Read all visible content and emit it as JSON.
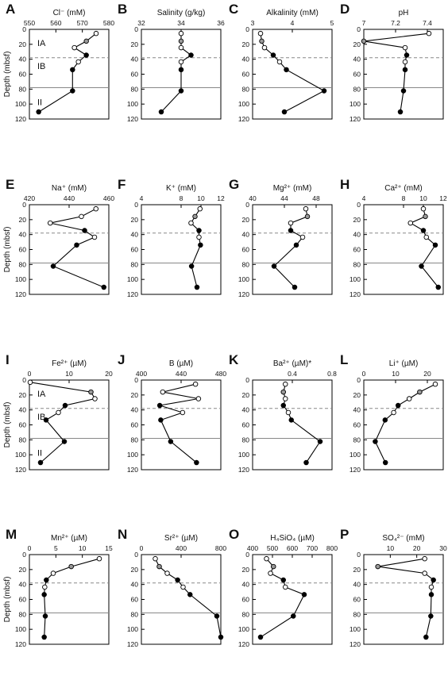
{
  "figure": {
    "y_axis_label": "Depth (mbsf)",
    "unit_labels": [
      "IA",
      "IB",
      "II"
    ]
  },
  "chart_data": [
    {
      "letter": "A",
      "type": "line",
      "title": "Cl⁻ (mM)",
      "xlim": [
        550,
        580
      ],
      "xticks": [
        550,
        560,
        570,
        580
      ],
      "ylim": [
        120,
        0
      ],
      "yticks": [
        0,
        20,
        40,
        60,
        80,
        100,
        120
      ],
      "ylabel_shown": true,
      "units_shown": true,
      "dashed_line_depth": 38,
      "solid_line_depth": 78,
      "points": [
        {
          "x": 575.2,
          "y": 5.5,
          "f": "open"
        },
        {
          "x": 571.5,
          "y": 15.8,
          "f": "gray"
        },
        {
          "x": 567.0,
          "y": 24.5,
          "f": "open"
        },
        {
          "x": 571.5,
          "y": 34.5,
          "f": "filled"
        },
        {
          "x": 568.5,
          "y": 43.5,
          "f": "open"
        },
        {
          "x": 566.3,
          "y": 54.0,
          "f": "filled"
        },
        {
          "x": 566.3,
          "y": 82.3,
          "f": "filled"
        },
        {
          "x": 553.5,
          "y": 110.5,
          "f": "filled"
        }
      ]
    },
    {
      "letter": "B",
      "type": "line",
      "title": "Salinity (g/kg)",
      "xlim": [
        32,
        36
      ],
      "xticks": [
        32,
        34,
        36
      ],
      "ylim": [
        120,
        0
      ],
      "yticks": [
        0,
        20,
        40,
        60,
        80,
        100,
        120
      ],
      "ylabel_shown": false,
      "units_shown": false,
      "dashed_line_depth": 38,
      "solid_line_depth": 78,
      "points": [
        {
          "x": 34.0,
          "y": 5.5,
          "f": "open"
        },
        {
          "x": 34.0,
          "y": 15.8,
          "f": "gray"
        },
        {
          "x": 34.0,
          "y": 24.5,
          "f": "open"
        },
        {
          "x": 34.5,
          "y": 34.5,
          "f": "filled"
        },
        {
          "x": 34.0,
          "y": 43.5,
          "f": "open"
        },
        {
          "x": 34.0,
          "y": 54.0,
          "f": "filled"
        },
        {
          "x": 34.0,
          "y": 82.3,
          "f": "filled"
        },
        {
          "x": 33.0,
          "y": 110.5,
          "f": "filled"
        }
      ]
    },
    {
      "letter": "C",
      "type": "line",
      "title": "Alkalinity (mM)",
      "xlim": [
        3,
        5
      ],
      "xticks": [
        3,
        4,
        5
      ],
      "ylim": [
        120,
        0
      ],
      "yticks": [
        0,
        20,
        40,
        60,
        80,
        100,
        120
      ],
      "ylabel_shown": false,
      "units_shown": false,
      "dashed_line_depth": 38,
      "solid_line_depth": 78,
      "points": [
        {
          "x": 3.2,
          "y": 5.5,
          "f": "open"
        },
        {
          "x": 3.23,
          "y": 15.8,
          "f": "gray"
        },
        {
          "x": 3.3,
          "y": 24.5,
          "f": "open"
        },
        {
          "x": 3.52,
          "y": 34.5,
          "f": "filled"
        },
        {
          "x": 3.68,
          "y": 43.5,
          "f": "open"
        },
        {
          "x": 3.85,
          "y": 54.0,
          "f": "filled"
        },
        {
          "x": 4.8,
          "y": 82.3,
          "f": "filled"
        },
        {
          "x": 3.8,
          "y": 110.5,
          "f": "filled"
        }
      ]
    },
    {
      "letter": "D",
      "type": "line",
      "title": "pH",
      "xlim": [
        7.0,
        7.5
      ],
      "xticks": [
        7.0,
        7.2,
        7.4
      ],
      "ylim": [
        120,
        0
      ],
      "yticks": [
        0,
        20,
        40,
        60,
        80,
        100,
        120
      ],
      "ylabel_shown": false,
      "units_shown": false,
      "dashed_line_depth": 38,
      "solid_line_depth": 78,
      "points": [
        {
          "x": 7.41,
          "y": 5.5,
          "f": "open"
        },
        {
          "x": 7.0,
          "y": 15.8,
          "f": "gray"
        },
        {
          "x": 7.26,
          "y": 24.5,
          "f": "open"
        },
        {
          "x": 7.27,
          "y": 34.5,
          "f": "filled"
        },
        {
          "x": 7.26,
          "y": 43.5,
          "f": "open"
        },
        {
          "x": 7.26,
          "y": 54.0,
          "f": "filled"
        },
        {
          "x": 7.25,
          "y": 82.3,
          "f": "filled"
        },
        {
          "x": 7.23,
          "y": 110.5,
          "f": "filled"
        }
      ]
    },
    {
      "letter": "E",
      "type": "line",
      "title": "Na⁺ (mM)",
      "xlim": [
        420,
        460
      ],
      "xticks": [
        420,
        440,
        460
      ],
      "ylim": [
        120,
        0
      ],
      "yticks": [
        0,
        20,
        40,
        60,
        80,
        100,
        120
      ],
      "ylabel_shown": true,
      "units_shown": false,
      "dashed_line_depth": 38,
      "solid_line_depth": 78,
      "points": [
        {
          "x": 453.5,
          "y": 5.5,
          "f": "open"
        },
        {
          "x": 446.2,
          "y": 15.8,
          "f": "open"
        },
        {
          "x": 430.5,
          "y": 24.5,
          "f": "open"
        },
        {
          "x": 447.8,
          "y": 34.5,
          "f": "filled"
        },
        {
          "x": 452.8,
          "y": 43.5,
          "f": "open"
        },
        {
          "x": 443.8,
          "y": 54.0,
          "f": "filled"
        },
        {
          "x": 432.0,
          "y": 82.3,
          "f": "filled"
        },
        {
          "x": 457.5,
          "y": 110.5,
          "f": "filled"
        }
      ]
    },
    {
      "letter": "F",
      "type": "line",
      "title": "K⁺ (mM)",
      "xlim": [
        4,
        12
      ],
      "xticks": [
        4,
        8,
        10,
        12
      ],
      "ylim": [
        120,
        0
      ],
      "yticks": [
        0,
        20,
        40,
        60,
        80,
        100,
        120
      ],
      "ylabel_shown": false,
      "units_shown": false,
      "dashed_line_depth": 38,
      "solid_line_depth": 78,
      "points": [
        {
          "x": 9.9,
          "y": 5.5,
          "f": "open"
        },
        {
          "x": 9.4,
          "y": 15.8,
          "f": "gray"
        },
        {
          "x": 9.0,
          "y": 24.5,
          "f": "open"
        },
        {
          "x": 9.8,
          "y": 34.5,
          "f": "filled"
        },
        {
          "x": 9.8,
          "y": 43.5,
          "f": "open"
        },
        {
          "x": 9.95,
          "y": 54.0,
          "f": "filled"
        },
        {
          "x": 9.05,
          "y": 82.3,
          "f": "filled"
        },
        {
          "x": 9.6,
          "y": 110.5,
          "f": "filled"
        }
      ]
    },
    {
      "letter": "G",
      "type": "line",
      "title": "Mg²⁺ (mM)",
      "xlim": [
        40,
        50
      ],
      "xticks": [
        40,
        44,
        48
      ],
      "ylim": [
        120,
        0
      ],
      "yticks": [
        0,
        20,
        40,
        60,
        80,
        100,
        120
      ],
      "ylabel_shown": false,
      "units_shown": false,
      "dashed_line_depth": 38,
      "solid_line_depth": 78,
      "points": [
        {
          "x": 46.7,
          "y": 5.5,
          "f": "open"
        },
        {
          "x": 46.9,
          "y": 15.8,
          "f": "gray"
        },
        {
          "x": 44.8,
          "y": 24.5,
          "f": "open"
        },
        {
          "x": 44.8,
          "y": 34.5,
          "f": "filled"
        },
        {
          "x": 46.3,
          "y": 43.5,
          "f": "open"
        },
        {
          "x": 45.5,
          "y": 54.0,
          "f": "filled"
        },
        {
          "x": 42.7,
          "y": 82.3,
          "f": "filled"
        },
        {
          "x": 45.3,
          "y": 110.5,
          "f": "filled"
        }
      ]
    },
    {
      "letter": "H",
      "type": "line",
      "title": "Ca²⁺ (mM)",
      "xlim": [
        4,
        12
      ],
      "xticks": [
        4,
        8,
        10,
        12
      ],
      "ylim": [
        120,
        0
      ],
      "yticks": [
        0,
        20,
        40,
        60,
        80,
        100,
        120
      ],
      "ylabel_shown": false,
      "units_shown": false,
      "dashed_line_depth": 38,
      "solid_line_depth": 78,
      "points": [
        {
          "x": 10.0,
          "y": 5.5,
          "f": "open"
        },
        {
          "x": 10.2,
          "y": 15.8,
          "f": "gray"
        },
        {
          "x": 8.7,
          "y": 24.5,
          "f": "open"
        },
        {
          "x": 10.0,
          "y": 34.5,
          "f": "filled"
        },
        {
          "x": 10.3,
          "y": 43.5,
          "f": "open"
        },
        {
          "x": 11.2,
          "y": 54.0,
          "f": "filled"
        },
        {
          "x": 9.8,
          "y": 82.3,
          "f": "filled"
        },
        {
          "x": 11.5,
          "y": 110.5,
          "f": "filled"
        }
      ]
    },
    {
      "letter": "I",
      "type": "line",
      "title": "Fe²⁺ (µM)",
      "xlim": [
        0,
        20
      ],
      "xticks": [
        0,
        10,
        20
      ],
      "ylim": [
        120,
        0
      ],
      "yticks": [
        0,
        20,
        40,
        60,
        80,
        100,
        120
      ],
      "ylabel_shown": true,
      "units_shown": true,
      "dashed_line_depth": 38,
      "solid_line_depth": 78,
      "points": [
        {
          "x": 0.2,
          "y": 3.0,
          "f": "open"
        },
        {
          "x": 15.5,
          "y": 16.0,
          "f": "gray"
        },
        {
          "x": 16.5,
          "y": 25.0,
          "f": "open"
        },
        {
          "x": 9.0,
          "y": 34.0,
          "f": "filled"
        },
        {
          "x": 7.3,
          "y": 43.5,
          "f": "open"
        },
        {
          "x": 4.2,
          "y": 53.5,
          "f": "filled"
        },
        {
          "x": 8.8,
          "y": 82.3,
          "f": "filled"
        },
        {
          "x": 2.8,
          "y": 110.5,
          "f": "filled"
        }
      ]
    },
    {
      "letter": "J",
      "type": "line",
      "title": "B (µM)",
      "xlim": [
        400,
        480
      ],
      "xticks": [
        400,
        440,
        480
      ],
      "ylim": [
        120,
        0
      ],
      "yticks": [
        0,
        20,
        40,
        60,
        80,
        100,
        120
      ],
      "ylabel_shown": false,
      "units_shown": false,
      "dashed_line_depth": 38,
      "solid_line_depth": 78,
      "points": [
        {
          "x": 454.5,
          "y": 5.5,
          "f": "open"
        },
        {
          "x": 421.5,
          "y": 16.0,
          "f": "open"
        },
        {
          "x": 457.5,
          "y": 25.0,
          "f": "open"
        },
        {
          "x": 418.5,
          "y": 34.0,
          "f": "filled"
        },
        {
          "x": 441.5,
          "y": 43.5,
          "f": "open"
        },
        {
          "x": 419.5,
          "y": 53.5,
          "f": "filled"
        },
        {
          "x": 429.5,
          "y": 82.3,
          "f": "filled"
        },
        {
          "x": 455.5,
          "y": 110.5,
          "f": "filled"
        }
      ]
    },
    {
      "letter": "K",
      "type": "line",
      "title": "Ba²⁺ (µM)*",
      "xlim": [
        0.0,
        0.8
      ],
      "xticks": [
        0.4,
        0.8
      ],
      "ylim": [
        120,
        0
      ],
      "yticks": [
        0,
        20,
        40,
        60,
        80,
        100,
        120
      ],
      "ylabel_shown": false,
      "units_shown": false,
      "dashed_line_depth": 38,
      "solid_line_depth": 78,
      "points": [
        {
          "x": 0.33,
          "y": 5.5,
          "f": "open"
        },
        {
          "x": 0.31,
          "y": 16.0,
          "f": "gray"
        },
        {
          "x": 0.33,
          "y": 25.0,
          "f": "open"
        },
        {
          "x": 0.31,
          "y": 34.0,
          "f": "filled"
        },
        {
          "x": 0.36,
          "y": 43.5,
          "f": "open"
        },
        {
          "x": 0.39,
          "y": 53.5,
          "f": "filled"
        },
        {
          "x": 0.68,
          "y": 82.3,
          "f": "filled"
        },
        {
          "x": 0.54,
          "y": 110.5,
          "f": "filled"
        }
      ]
    },
    {
      "letter": "L",
      "type": "line",
      "title": "Li⁺ (µM)",
      "xlim": [
        0,
        25
      ],
      "xticks": [
        0,
        10,
        20
      ],
      "ylim": [
        120,
        0
      ],
      "yticks": [
        0,
        20,
        40,
        60,
        80,
        100,
        120
      ],
      "ylabel_shown": false,
      "units_shown": false,
      "dashed_line_depth": 38,
      "solid_line_depth": 78,
      "points": [
        {
          "x": 22.5,
          "y": 5.5,
          "f": "open"
        },
        {
          "x": 17.6,
          "y": 16.0,
          "f": "gray"
        },
        {
          "x": 14.3,
          "y": 25.0,
          "f": "open"
        },
        {
          "x": 10.8,
          "y": 34.0,
          "f": "filled"
        },
        {
          "x": 9.4,
          "y": 43.5,
          "f": "open"
        },
        {
          "x": 6.7,
          "y": 53.5,
          "f": "filled"
        },
        {
          "x": 3.6,
          "y": 82.3,
          "f": "filled"
        },
        {
          "x": 6.8,
          "y": 110.5,
          "f": "filled"
        }
      ]
    },
    {
      "letter": "M",
      "type": "line",
      "title": "Mn²⁺ (µM)",
      "xlim": [
        0,
        15
      ],
      "xticks": [
        0,
        5,
        10,
        15
      ],
      "ylim": [
        120,
        0
      ],
      "yticks": [
        0,
        20,
        40,
        60,
        80,
        100,
        120
      ],
      "ylabel_shown": true,
      "units_shown": false,
      "dashed_line_depth": 38,
      "solid_line_depth": 78,
      "points": [
        {
          "x": 13.2,
          "y": 5.5,
          "f": "open"
        },
        {
          "x": 7.9,
          "y": 16.0,
          "f": "gray"
        },
        {
          "x": 4.5,
          "y": 25.0,
          "f": "open"
        },
        {
          "x": 3.2,
          "y": 34.0,
          "f": "filled"
        },
        {
          "x": 2.9,
          "y": 43.5,
          "f": "open"
        },
        {
          "x": 2.8,
          "y": 53.5,
          "f": "filled"
        },
        {
          "x": 3.0,
          "y": 82.3,
          "f": "filled"
        },
        {
          "x": 2.8,
          "y": 110.5,
          "f": "filled"
        }
      ]
    },
    {
      "letter": "N",
      "type": "line",
      "title": "Sr²⁺ (µM)",
      "xlim": [
        0,
        800
      ],
      "xticks": [
        0,
        400,
        800
      ],
      "ylim": [
        120,
        0
      ],
      "yticks": [
        0,
        20,
        40,
        60,
        80,
        100,
        120
      ],
      "ylabel_shown": false,
      "units_shown": false,
      "dashed_line_depth": 38,
      "solid_line_depth": 78,
      "points": [
        {
          "x": 140,
          "y": 5.5,
          "f": "open"
        },
        {
          "x": 180,
          "y": 16.0,
          "f": "gray"
        },
        {
          "x": 260,
          "y": 25.0,
          "f": "open"
        },
        {
          "x": 365,
          "y": 34.0,
          "f": "filled"
        },
        {
          "x": 420,
          "y": 43.5,
          "f": "open"
        },
        {
          "x": 490,
          "y": 53.5,
          "f": "filled"
        },
        {
          "x": 760,
          "y": 82.3,
          "f": "filled"
        },
        {
          "x": 800,
          "y": 110.5,
          "f": "filled"
        }
      ]
    },
    {
      "letter": "O",
      "type": "line",
      "title": "H₄SiO₄ (µM)",
      "xlim": [
        400,
        800
      ],
      "xticks": [
        400,
        500,
        600,
        700,
        800
      ],
      "ylim": [
        120,
        0
      ],
      "yticks": [
        0,
        20,
        40,
        60,
        80,
        100,
        120
      ],
      "ylabel_shown": false,
      "units_shown": false,
      "dashed_line_depth": 38,
      "solid_line_depth": 78,
      "points": [
        {
          "x": 470,
          "y": 5.5,
          "f": "open"
        },
        {
          "x": 505,
          "y": 16.0,
          "f": "gray"
        },
        {
          "x": 490,
          "y": 25.0,
          "f": "open"
        },
        {
          "x": 555,
          "y": 34.0,
          "f": "filled"
        },
        {
          "x": 565,
          "y": 43.5,
          "f": "open"
        },
        {
          "x": 660,
          "y": 53.5,
          "f": "filled"
        },
        {
          "x": 605,
          "y": 82.3,
          "f": "filled"
        },
        {
          "x": 440,
          "y": 110.5,
          "f": "filled"
        }
      ]
    },
    {
      "letter": "P",
      "type": "line",
      "title": "SO₄²⁻ (mM)",
      "xlim": [
        0,
        30
      ],
      "xticks": [
        10,
        20,
        30
      ],
      "ylim": [
        120,
        0
      ],
      "yticks": [
        0,
        20,
        40,
        60,
        80,
        100,
        120
      ],
      "ylabel_shown": false,
      "units_shown": false,
      "dashed_line_depth": 38,
      "solid_line_depth": 78,
      "points": [
        {
          "x": 23.0,
          "y": 5.5,
          "f": "open"
        },
        {
          "x": 5.3,
          "y": 16.0,
          "f": "gray"
        },
        {
          "x": 23.0,
          "y": 25.0,
          "f": "open"
        },
        {
          "x": 26.3,
          "y": 34.0,
          "f": "filled"
        },
        {
          "x": 25.5,
          "y": 43.5,
          "f": "open"
        },
        {
          "x": 25.5,
          "y": 53.5,
          "f": "filled"
        },
        {
          "x": 25.3,
          "y": 82.3,
          "f": "filled"
        },
        {
          "x": 23.5,
          "y": 110.5,
          "f": "filled"
        }
      ]
    }
  ]
}
